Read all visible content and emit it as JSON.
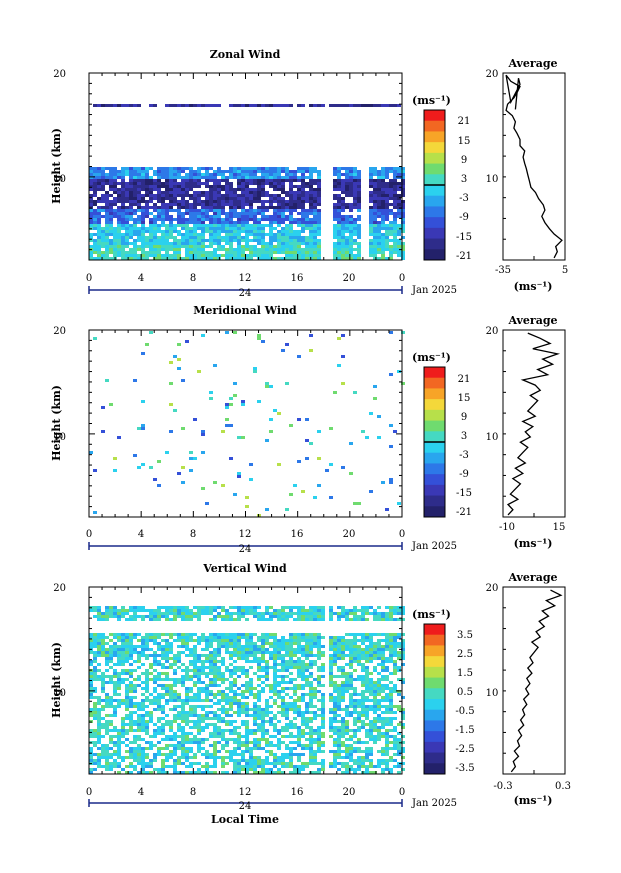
{
  "chart_data": [
    {
      "type": "heatmap",
      "title": "Zonal Wind",
      "ylabel": "Height (km)",
      "xlabel": "",
      "x_ticks": [
        "0",
        "4",
        "8",
        "12",
        "16",
        "20",
        "0"
      ],
      "xlim": [
        0,
        24
      ],
      "y_ticks": [
        "20",
        "10"
      ],
      "ylim": [
        2,
        20
      ],
      "date_marker": "24",
      "date_label": "Jan 2025",
      "colorbar": {
        "unit_label": "(ms⁻¹)",
        "ticks": [
          "21",
          "15",
          "9",
          "3",
          "-3",
          "-9",
          "-15",
          "-21"
        ],
        "range": [
          -24,
          24
        ],
        "zero_line": true
      },
      "layers": [
        {
          "from": 16.8,
          "to": 17.3,
          "value": -18
        },
        {
          "from": 9.7,
          "to": 11.2,
          "value": -7
        },
        {
          "from": 7.0,
          "to": 9.8,
          "value": -18
        },
        {
          "from": 5.5,
          "to": 7.0,
          "value": -10
        },
        {
          "from": 3.5,
          "to": 5.5,
          "value": -2
        },
        {
          "from": 2.2,
          "to": 3.5,
          "value": 1
        }
      ]
    },
    {
      "type": "line",
      "title": "Average",
      "xlabel": "(ms⁻¹)",
      "x_ticks": [
        "-35",
        "5"
      ],
      "xlim": [
        -35,
        5
      ],
      "y_ticks": [
        "20",
        "10"
      ],
      "ylim": [
        2,
        20
      ],
      "series": [
        {
          "x": [
            -2,
            0,
            -1,
            3,
            -2,
            -5,
            -8,
            -10,
            -8,
            -9,
            -12,
            -14,
            -17,
            -18,
            -19,
            -20,
            -21,
            -22,
            -21,
            -24,
            -24,
            -26,
            -28,
            -27,
            -29,
            -33,
            -32,
            -28,
            -26,
            -24,
            -30,
            -33,
            -30,
            -24,
            -25,
            -27
          ],
          "y": [
            2.2,
            2.8,
            3.3,
            3.9,
            4.5,
            5.0,
            5.6,
            6.2,
            6.8,
            7.3,
            7.9,
            8.5,
            9.0,
            9.6,
            10.2,
            10.8,
            11.3,
            11.9,
            12.5,
            13.0,
            13.6,
            14.2,
            14.7,
            15.3,
            15.9,
            16.4,
            17.0,
            17.6,
            18.1,
            18.7,
            19.2,
            19.8,
            17.2,
            18.9,
            19.5,
            16.5
          ]
        }
      ]
    },
    {
      "type": "heatmap",
      "title": "Meridional Wind",
      "ylabel": "Height (km)",
      "x_ticks": [
        "0",
        "4",
        "8",
        "12",
        "16",
        "20",
        "0"
      ],
      "xlim": [
        0,
        24
      ],
      "y_ticks": [
        "20",
        "10"
      ],
      "ylim": [
        2,
        20
      ],
      "date_marker": "24",
      "date_label": "Jan 2025",
      "colorbar": {
        "unit_label": "(ms⁻¹)",
        "ticks": [
          "21",
          "15",
          "9",
          "3",
          "-3",
          "-9",
          "-15",
          "-21"
        ],
        "range": [
          -24,
          24
        ],
        "zero_line": true
      }
    },
    {
      "type": "line",
      "title": "Average",
      "xlabel": "(ms⁻¹)",
      "x_ticks": [
        "-10",
        "15"
      ],
      "xlim": [
        -10,
        15
      ],
      "y_ticks": [
        "20",
        "10"
      ],
      "ylim": [
        2,
        20
      ],
      "series": [
        {
          "x": [
            -8,
            -6,
            -8,
            -4,
            -7,
            -5,
            -3,
            -6,
            -2,
            -5,
            -1,
            -4,
            -2,
            0,
            -3,
            1,
            -1,
            2,
            -2,
            3,
            0,
            2,
            4,
            1,
            5,
            3,
            -2,
            8,
            4,
            10,
            6,
            12,
            2,
            9,
            5,
            0
          ],
          "y": [
            2.2,
            2.7,
            3.2,
            3.7,
            4.2,
            4.7,
            5.2,
            5.7,
            6.2,
            6.7,
            7.2,
            7.7,
            8.2,
            8.7,
            9.2,
            9.7,
            10.2,
            10.7,
            11.2,
            11.7,
            12.2,
            12.7,
            13.2,
            13.7,
            14.2,
            14.7,
            15.2,
            15.7,
            16.2,
            16.7,
            17.2,
            17.7,
            18.2,
            18.7,
            19.2,
            19.7
          ]
        }
      ]
    },
    {
      "type": "heatmap",
      "title": "Vertical Wind",
      "ylabel": "Height (km)",
      "xlabel": "Local Time",
      "x_ticks": [
        "0",
        "4",
        "8",
        "12",
        "16",
        "20",
        "0"
      ],
      "xlim": [
        0,
        24
      ],
      "y_ticks": [
        "20",
        "10"
      ],
      "ylim": [
        2,
        20
      ],
      "date_marker": "24",
      "date_label": "Jan 2025",
      "colorbar": {
        "unit_label": "(ms⁻¹)",
        "ticks": [
          "3.5",
          "2.5",
          "1.5",
          "0.5",
          "-0.5",
          "-1.5",
          "-2.5",
          "-3.5"
        ],
        "range": [
          -4,
          4
        ],
        "zero_line": false
      }
    },
    {
      "type": "line",
      "title": "Average",
      "xlabel": "(ms⁻¹)",
      "x_ticks": [
        "-0.3",
        "0.3"
      ],
      "xlim": [
        -0.3,
        0.3
      ],
      "series": [
        {
          "x": [
            -0.22,
            -0.18,
            -0.2,
            -0.15,
            -0.19,
            -0.14,
            -0.16,
            -0.12,
            -0.15,
            -0.1,
            -0.13,
            -0.09,
            -0.11,
            -0.07,
            -0.1,
            -0.05,
            -0.08,
            -0.04,
            -0.07,
            -0.02,
            -0.06,
            -0.01,
            -0.04,
            0.0,
            0.04,
            -0.02,
            0.06,
            0.02,
            0.1,
            0.05,
            0.14,
            0.08,
            0.2,
            0.12,
            0.26,
            0.16
          ],
          "y": [
            2.2,
            2.7,
            3.2,
            3.7,
            4.2,
            4.7,
            5.2,
            5.7,
            6.2,
            6.7,
            7.2,
            7.7,
            8.2,
            8.7,
            9.2,
            9.7,
            10.2,
            10.7,
            11.2,
            11.7,
            12.2,
            12.7,
            13.2,
            13.7,
            14.2,
            14.7,
            15.2,
            15.7,
            16.2,
            16.7,
            17.2,
            17.7,
            18.2,
            18.7,
            19.2,
            19.7
          ]
        }
      ]
    }
  ]
}
